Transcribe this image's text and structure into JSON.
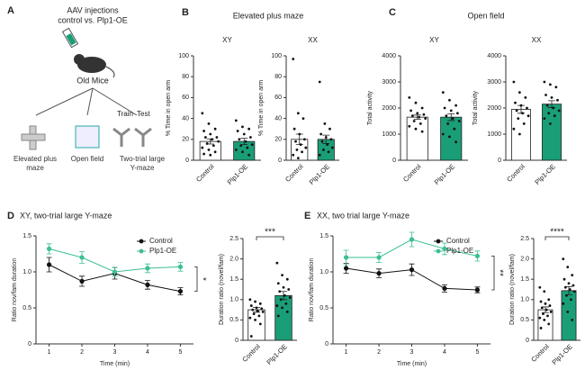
{
  "panel_a": {
    "label": "A",
    "title": "AAV injections",
    "subtitle": "control vs. Plp1-OE",
    "mice": "Old Mice",
    "train": "Train",
    "test": "Test",
    "tests": [
      "Elevated plus maze",
      "Open field",
      "Two-trial large Y-maze"
    ]
  },
  "chart_data": [
    {
      "type": "bar",
      "panel": "B",
      "title": "Elevated plus maze",
      "subtitle": "XY",
      "ylabel": "% Time in open arm",
      "categories": [
        "Control",
        "Plp1-OE"
      ],
      "values": [
        18,
        18
      ],
      "errors": [
        2.5,
        3
      ],
      "colors": [
        "#ffffff",
        "#1a9e77"
      ],
      "points": [
        [
          45,
          35,
          30,
          28,
          25,
          22,
          22,
          20,
          18,
          16,
          14,
          12,
          10,
          8,
          6,
          5
        ],
        [
          38,
          32,
          30,
          28,
          25,
          22,
          20,
          18,
          15,
          14,
          12,
          10,
          8,
          5
        ]
      ],
      "ylim": [
        0,
        100
      ],
      "yticks": [
        0,
        20,
        40,
        60,
        80,
        100
      ]
    },
    {
      "type": "bar",
      "subtitle": "XX",
      "ylabel": "% Time in open arm",
      "categories": [
        "Control",
        "Plp1-OE"
      ],
      "values": [
        20,
        20
      ],
      "errors": [
        5,
        4
      ],
      "colors": [
        "#ffffff",
        "#1a9e77"
      ],
      "points": [
        [
          97,
          45,
          40,
          30,
          25,
          20,
          18,
          15,
          12,
          10,
          8,
          5,
          2
        ],
        [
          75,
          35,
          30,
          25,
          22,
          20,
          18,
          15,
          12,
          10,
          8,
          5
        ]
      ],
      "ylim": [
        0,
        100
      ],
      "yticks": [
        0,
        20,
        40,
        60,
        80,
        100
      ]
    },
    {
      "type": "bar",
      "panel": "C",
      "title": "Open field",
      "subtitle": "XY",
      "ylabel": "Total activity",
      "categories": [
        "Control",
        "Plp1-OE"
      ],
      "values": [
        1650,
        1650
      ],
      "errors": [
        80,
        130
      ],
      "colors": [
        "#ffffff",
        "#1a9e77"
      ],
      "points": [
        [
          2400,
          2200,
          2000,
          1900,
          1800,
          1750,
          1700,
          1650,
          1600,
          1500,
          1400,
          1300,
          1200,
          1100
        ],
        [
          2600,
          2300,
          2100,
          2000,
          1900,
          1800,
          1700,
          1600,
          1500,
          1400,
          1200,
          1000,
          900,
          700
        ]
      ],
      "ylim": [
        0,
        4000
      ],
      "yticks": [
        0,
        1000,
        2000,
        3000,
        4000
      ]
    },
    {
      "type": "bar",
      "subtitle": "XX",
      "ylabel": "Total activity",
      "categories": [
        "Control",
        "Plp1-OE"
      ],
      "values": [
        1950,
        2150
      ],
      "errors": [
        150,
        130
      ],
      "colors": [
        "#ffffff",
        "#1a9e77"
      ],
      "points": [
        [
          3000,
          2600,
          2400,
          2200,
          2100,
          2000,
          1900,
          1800,
          1700,
          1600,
          1400,
          1200,
          1000
        ],
        [
          3000,
          2900,
          2800,
          2500,
          2400,
          2300,
          2100,
          2000,
          1900,
          1800,
          1700,
          1600,
          1400
        ]
      ],
      "ylim": [
        0,
        4000
      ],
      "yticks": [
        0,
        1000,
        2000,
        3000,
        4000
      ]
    },
    {
      "type": "line",
      "panel": "D",
      "title": "XY, two-trial large Y-maze",
      "xlabel": "Time (min)",
      "ylabel": "Ratio nov/fam duration",
      "annotation": "*",
      "x": [
        1,
        2,
        3,
        4,
        5
      ],
      "series": [
        {
          "name": "Control",
          "color": "#111111",
          "values": [
            1.1,
            0.87,
            0.98,
            0.82,
            0.73
          ],
          "errors": [
            0.1,
            0.07,
            0.08,
            0.06,
            0.05
          ]
        },
        {
          "name": "Plp1-OE",
          "color": "#3dbf93",
          "values": [
            1.32,
            1.2,
            1.0,
            1.05,
            1.07
          ],
          "errors": [
            0.07,
            0.08,
            0.06,
            0.06,
            0.06
          ]
        }
      ],
      "xlim": [
        0.6,
        5.4
      ],
      "xticks": [
        1,
        2,
        3,
        4,
        5
      ],
      "ylim": [
        0,
        1.5
      ],
      "yticks": [
        0,
        0.5,
        {
          "value": 1,
          "label": "1.0"
        },
        1.5
      ]
    },
    {
      "type": "bar",
      "ylabel": "Duration ratio (novel/fam)",
      "annotation": "***",
      "categories": [
        "Control",
        "Plp1-OE"
      ],
      "values": [
        0.75,
        1.1
      ],
      "errors": [
        0.06,
        0.1
      ],
      "colors": [
        "#ffffff",
        "#1a9e77"
      ],
      "points": [
        [
          1.0,
          0.95,
          0.9,
          0.85,
          0.8,
          0.78,
          0.75,
          0.72,
          0.7,
          0.65,
          0.6,
          0.55,
          0.5,
          0.4,
          0.1
        ],
        [
          1.9,
          1.6,
          1.5,
          1.4,
          1.3,
          1.25,
          1.2,
          1.1,
          1.05,
          1.0,
          0.9,
          0.85,
          0.8,
          0.7,
          0.6
        ]
      ],
      "ylim": [
        0,
        2.5
      ],
      "yticks": [
        0,
        0.5,
        {
          "value": 1,
          "label": "1.0"
        },
        1.5,
        {
          "value": 2,
          "label": "2.0"
        },
        2.5
      ]
    },
    {
      "type": "line",
      "panel": "E",
      "title": "XX, two trial large Y-maze",
      "xlabel": "Time (min)",
      "ylabel": "Ratio nov/fam duration",
      "annotation": "**",
      "x": [
        1,
        2,
        3,
        4,
        5
      ],
      "series": [
        {
          "name": "Control",
          "color": "#111111",
          "values": [
            1.05,
            0.98,
            1.03,
            0.77,
            0.75
          ],
          "errors": [
            0.07,
            0.06,
            0.08,
            0.05,
            0.04
          ]
        },
        {
          "name": "Plp1-OE",
          "color": "#3dbf93",
          "values": [
            1.2,
            1.2,
            1.45,
            1.32,
            1.22
          ],
          "errors": [
            0.1,
            0.07,
            0.1,
            0.08,
            0.07
          ]
        }
      ],
      "xlim": [
        0.6,
        5.4
      ],
      "xticks": [
        1,
        2,
        3,
        4,
        5
      ],
      "ylim": [
        0,
        1.5
      ],
      "yticks": [
        0,
        0.5,
        {
          "value": 1,
          "label": "1.0"
        },
        1.5
      ]
    },
    {
      "type": "bar",
      "ylabel": "Duration ratio (novel/fam)",
      "annotation": "****",
      "categories": [
        "Control",
        "Plp1-OE"
      ],
      "values": [
        0.75,
        1.22
      ],
      "errors": [
        0.07,
        0.1
      ],
      "colors": [
        "#ffffff",
        "#1a9e77"
      ],
      "points": [
        [
          1.3,
          1.2,
          1.0,
          0.95,
          0.9,
          0.85,
          0.8,
          0.75,
          0.7,
          0.65,
          0.6,
          0.55,
          0.5,
          0.4,
          0.3
        ],
        [
          2.0,
          1.8,
          1.6,
          1.5,
          1.4,
          1.35,
          1.3,
          1.25,
          1.2,
          1.1,
          1.0,
          0.9,
          0.7,
          0.5
        ]
      ],
      "ylim": [
        0,
        2.5
      ],
      "yticks": [
        0,
        0.5,
        {
          "value": 1,
          "label": "1.0"
        },
        1.5,
        {
          "value": 2,
          "label": "2.0"
        },
        2.5
      ]
    }
  ]
}
